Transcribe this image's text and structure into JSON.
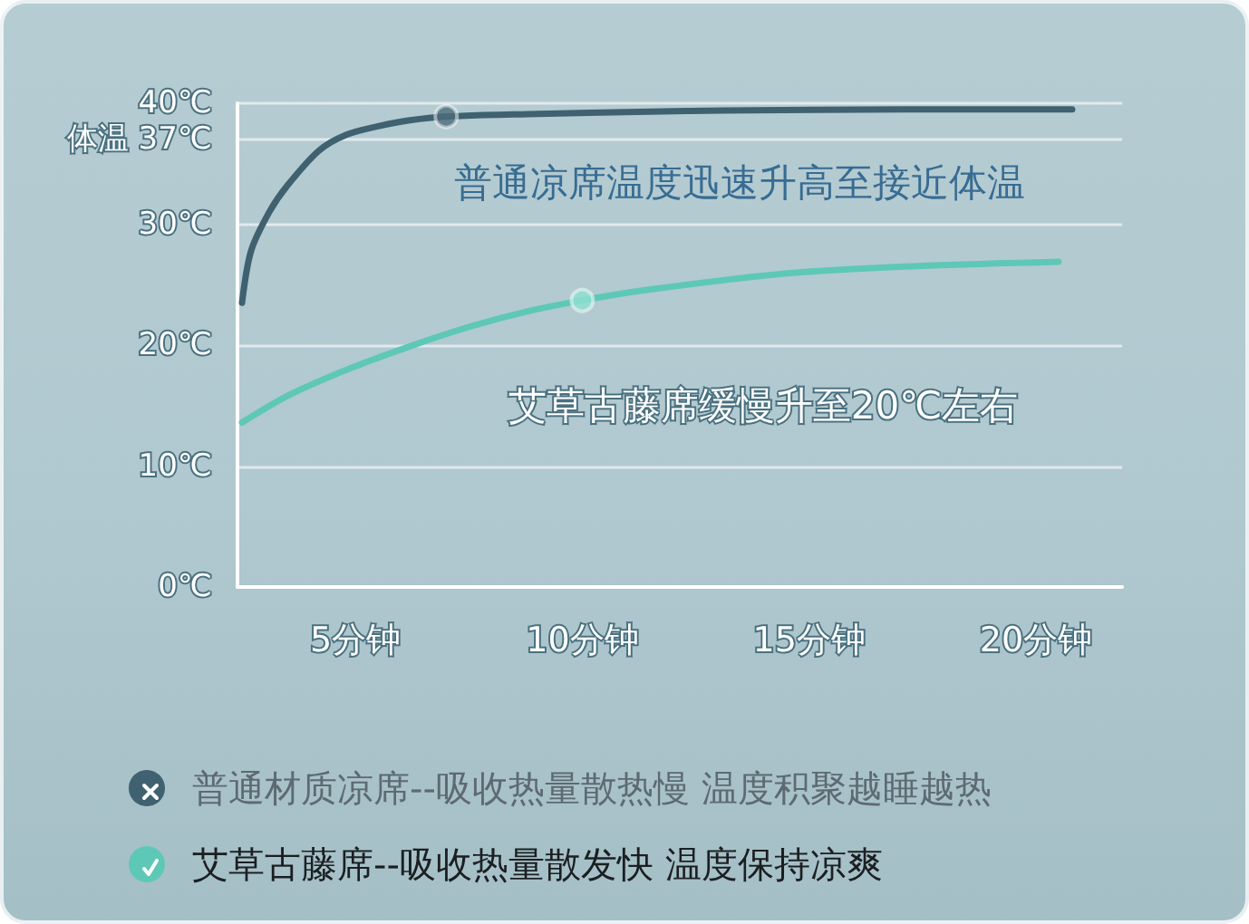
{
  "chart_data": {
    "type": "line",
    "xlim": [
      2.4,
      21.9
    ],
    "xticks": [
      {
        "value": 5,
        "label": "5分钟"
      },
      {
        "value": 10,
        "label": "10分钟"
      },
      {
        "value": 15,
        "label": "15分钟"
      },
      {
        "value": 20,
        "label": "20分钟"
      }
    ],
    "ylim": [
      0,
      40
    ],
    "yticks": [
      {
        "value": 0,
        "label": "0℃"
      },
      {
        "value": 10,
        "label": "10℃"
      },
      {
        "value": 20,
        "label": "20℃"
      },
      {
        "value": 30,
        "label": "30℃"
      },
      {
        "value": 37,
        "label": "体温\n37℃"
      },
      {
        "value": 40,
        "label": "40℃"
      }
    ],
    "grid": "y",
    "legend": "bottom left",
    "marker": "none",
    "line_style": "solid",
    "series": [
      {
        "name": "普通材质凉席--吸收热量散热慢 温度积聚越睡越热",
        "color": "#3f6170",
        "x": [
          2.5,
          2.7,
          3.1,
          3.5,
          4.2,
          4.8,
          5.5,
          6.2,
          7.0,
          8.8,
          11.5,
          13.1,
          17.1,
          20.8
        ],
        "values": [
          23.5,
          27.8,
          31.0,
          33.2,
          36.1,
          37.4,
          38.1,
          38.6,
          38.9,
          39.1,
          39.3,
          39.4,
          39.5,
          39.5
        ]
      },
      {
        "name": "艾草古藤席--吸收热量散发快 温度保持凉爽",
        "color": "#5ec8b6",
        "x": [
          2.5,
          3.5,
          4.9,
          6.2,
          7.5,
          8.8,
          10.0,
          11.5,
          14.4,
          17.1,
          20.5
        ],
        "values": [
          13.6,
          15.8,
          18.1,
          19.9,
          21.5,
          22.8,
          23.7,
          24.6,
          25.9,
          26.5,
          26.9
        ]
      },
      {
        "type": "scatter",
        "color": "#4d6c7a",
        "marker": "circle",
        "x": [
          7.0
        ],
        "values": [
          38.9
        ]
      },
      {
        "type": "scatter",
        "color": "#8fe0d2",
        "marker": "circle",
        "x": [
          10.0
        ],
        "values": [
          23.7
        ]
      }
    ],
    "annotations": [
      "普通凉席温度迅速升高至接近体温",
      "艾草古藤席缓慢升至20℃左右"
    ]
  }
}
